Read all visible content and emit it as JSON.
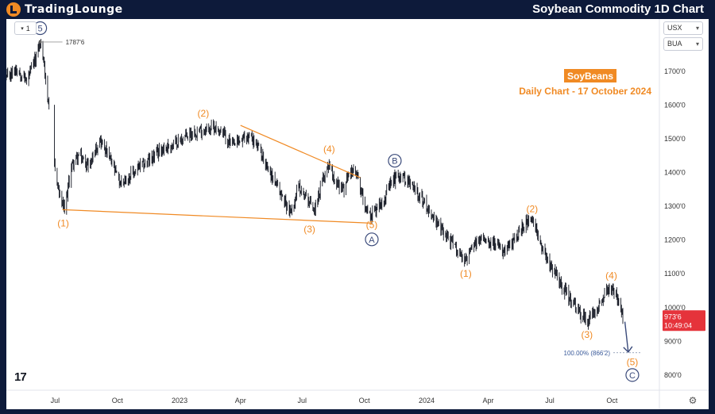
{
  "header": {
    "logo_part1": "TradingLounge",
    "title": "Soybean Commodity 1D Chart"
  },
  "toolbar": {
    "interval_button": "1"
  },
  "price_scale": {
    "currency": "USX",
    "exchange": "BUA"
  },
  "annotation_box": {
    "tag": "SoyBeans",
    "subtitle": "Daily Chart - 17 October 2024"
  },
  "last_price": {
    "value": "973'6",
    "countdown": "10:49:04"
  },
  "colors": {
    "orange": "#f08a24",
    "navy": "#3a4a7a",
    "price_tag": "#e5333b",
    "bars": "#131722"
  },
  "chart_data": {
    "type": "ohlc",
    "y_axis": {
      "ticks": [
        800,
        900,
        1000,
        1100,
        1200,
        1300,
        1400,
        1500,
        1600,
        1700
      ],
      "tick_labels": [
        "800'0",
        "900'0",
        "1000'0",
        "1100'0",
        "1200'0",
        "1300'0",
        "1400'0",
        "1500'0",
        "1600'0",
        "1700'0"
      ],
      "range": [
        755,
        1855
      ]
    },
    "x_axis": {
      "range": [
        "2022-04-20",
        "2024-12-10"
      ],
      "ticks": [
        {
          "date": "2022-07-01",
          "label": "Jul"
        },
        {
          "date": "2022-10-01",
          "label": "Oct"
        },
        {
          "date": "2023-01-01",
          "label": "2023"
        },
        {
          "date": "2023-04-01",
          "label": "Apr"
        },
        {
          "date": "2023-07-01",
          "label": "Jul"
        },
        {
          "date": "2023-10-01",
          "label": "Oct"
        },
        {
          "date": "2024-01-01",
          "label": "2024"
        },
        {
          "date": "2024-04-01",
          "label": "Apr"
        },
        {
          "date": "2024-07-01",
          "label": "Jul"
        },
        {
          "date": "2024-10-01",
          "label": "Oct"
        }
      ]
    },
    "price_path": [
      [
        "2022-04-20",
        1680
      ],
      [
        "2022-05-05",
        1710
      ],
      [
        "2022-05-20",
        1670
      ],
      [
        "2022-06-01",
        1730
      ],
      [
        "2022-06-09",
        1787
      ],
      [
        "2022-06-15",
        1720
      ],
      [
        "2022-06-22",
        1580
      ],
      [
        "2022-06-30",
        1420
      ],
      [
        "2022-07-08",
        1330
      ],
      [
        "2022-07-15",
        1285
      ],
      [
        "2022-07-25",
        1420
      ],
      [
        "2022-08-05",
        1450
      ],
      [
        "2022-08-20",
        1420
      ],
      [
        "2022-09-05",
        1500
      ],
      [
        "2022-09-20",
        1440
      ],
      [
        "2022-10-05",
        1370
      ],
      [
        "2022-10-20",
        1390
      ],
      [
        "2022-11-05",
        1420
      ],
      [
        "2022-11-20",
        1440
      ],
      [
        "2022-12-05",
        1470
      ],
      [
        "2022-12-20",
        1480
      ],
      [
        "2023-01-05",
        1500
      ],
      [
        "2023-01-20",
        1520
      ],
      [
        "2023-02-05",
        1525
      ],
      [
        "2023-02-20",
        1535
      ],
      [
        "2023-03-05",
        1520
      ],
      [
        "2023-03-20",
        1480
      ],
      [
        "2023-04-01",
        1495
      ],
      [
        "2023-04-15",
        1510
      ],
      [
        "2023-05-01",
        1460
      ],
      [
        "2023-05-15",
        1400
      ],
      [
        "2023-06-01",
        1330
      ],
      [
        "2023-06-15",
        1280
      ],
      [
        "2023-06-25",
        1360
      ],
      [
        "2023-07-10",
        1320
      ],
      [
        "2023-07-20",
        1290
      ],
      [
        "2023-08-01",
        1380
      ],
      [
        "2023-08-10",
        1430
      ],
      [
        "2023-08-20",
        1370
      ],
      [
        "2023-09-01",
        1350
      ],
      [
        "2023-09-10",
        1410
      ],
      [
        "2023-09-20",
        1390
      ],
      [
        "2023-10-01",
        1310
      ],
      [
        "2023-10-10",
        1270
      ],
      [
        "2023-10-20",
        1300
      ],
      [
        "2023-11-01",
        1330
      ],
      [
        "2023-11-10",
        1370
      ],
      [
        "2023-11-20",
        1395
      ],
      [
        "2023-12-01",
        1380
      ],
      [
        "2023-12-15",
        1350
      ],
      [
        "2024-01-01",
        1300
      ],
      [
        "2024-01-15",
        1250
      ],
      [
        "2024-02-01",
        1210
      ],
      [
        "2024-02-15",
        1170
      ],
      [
        "2024-02-28",
        1140
      ],
      [
        "2024-03-10",
        1180
      ],
      [
        "2024-03-25",
        1210
      ],
      [
        "2024-04-10",
        1190
      ],
      [
        "2024-04-25",
        1160
      ],
      [
        "2024-05-10",
        1200
      ],
      [
        "2024-05-25",
        1250
      ],
      [
        "2024-06-05",
        1255
      ],
      [
        "2024-06-20",
        1180
      ],
      [
        "2024-07-01",
        1130
      ],
      [
        "2024-07-15",
        1080
      ],
      [
        "2024-08-01",
        1020
      ],
      [
        "2024-08-15",
        980
      ],
      [
        "2024-08-25",
        960
      ],
      [
        "2024-09-05",
        990
      ],
      [
        "2024-09-20",
        1040
      ],
      [
        "2024-09-30",
        1060
      ],
      [
        "2024-10-08",
        1030
      ],
      [
        "2024-10-17",
        973
      ]
    ],
    "wave_labels": [
      {
        "text": "5",
        "date": "2022-06-09",
        "price": 1828,
        "style": "navy-circle"
      },
      {
        "text": "(1)",
        "date": "2022-07-13",
        "price": 1250,
        "style": "orange"
      },
      {
        "text": "(2)",
        "date": "2023-02-05",
        "price": 1575,
        "style": "orange"
      },
      {
        "text": "(3)",
        "date": "2023-07-12",
        "price": 1232,
        "style": "orange"
      },
      {
        "text": "(4)",
        "date": "2023-08-10",
        "price": 1470,
        "style": "orange"
      },
      {
        "text": "(5)",
        "date": "2023-10-12",
        "price": 1245,
        "style": "orange"
      },
      {
        "text": "A",
        "date": "2023-10-12",
        "price": 1202,
        "style": "navy-circle"
      },
      {
        "text": "B",
        "date": "2023-11-15",
        "price": 1435,
        "style": "navy-circle"
      },
      {
        "text": "(1)",
        "date": "2024-02-28",
        "price": 1100,
        "style": "orange"
      },
      {
        "text": "(2)",
        "date": "2024-06-05",
        "price": 1292,
        "style": "orange"
      },
      {
        "text": "(3)",
        "date": "2024-08-25",
        "price": 920,
        "style": "orange"
      },
      {
        "text": "(4)",
        "date": "2024-09-30",
        "price": 1095,
        "style": "orange"
      },
      {
        "text": "(5)",
        "date": "2024-10-31",
        "price": 838,
        "style": "orange"
      },
      {
        "text": "C",
        "date": "2024-10-31",
        "price": 800,
        "style": "navy-circle"
      }
    ],
    "price_labels": [
      {
        "text": "1787'6",
        "date": "2022-06-09",
        "price": 1787
      }
    ],
    "trendlines": [
      {
        "from": [
          "2022-07-12",
          1290
        ],
        "to": [
          "2023-10-12",
          1250
        ]
      },
      {
        "from": [
          "2023-04-01",
          1540
        ],
        "to": [
          "2023-09-25",
          1385
        ]
      }
    ],
    "target": {
      "label": "100.00% (866'2)",
      "price": 866,
      "arrow_from": [
        "2024-10-20",
        958
      ],
      "arrow_to": [
        "2024-10-25",
        868
      ]
    }
  }
}
